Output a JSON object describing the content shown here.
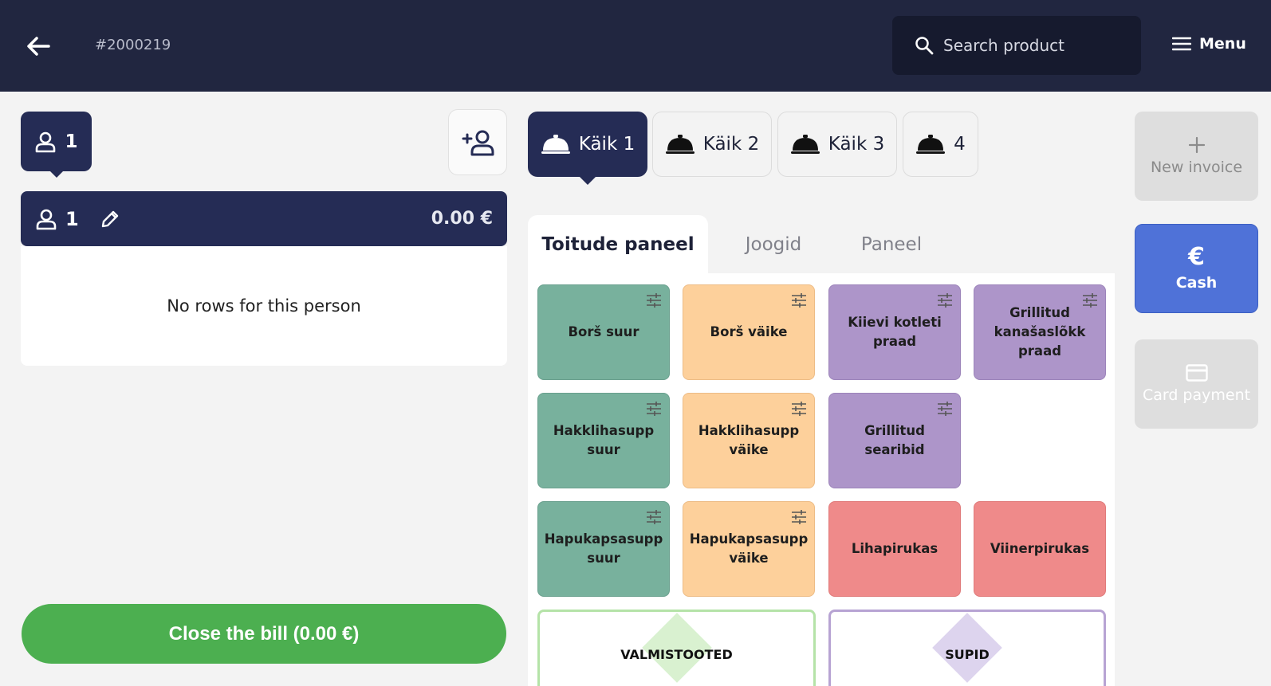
{
  "header": {
    "order_number": "#2000219",
    "search_placeholder": "Search product",
    "menu_label": "Menu"
  },
  "left": {
    "person_tab_count": "1",
    "person_number": "1",
    "person_total": "0.00 €",
    "empty_text": "No rows for this person",
    "close_bill_label": "Close the bill (0.00 €)"
  },
  "courses": [
    {
      "label": "Käik 1"
    },
    {
      "label": "Käik 2"
    },
    {
      "label": "Käik 3"
    },
    {
      "label": "4"
    }
  ],
  "panel_tabs": [
    {
      "label": "Toitude paneel"
    },
    {
      "label": "Joogid"
    },
    {
      "label": "Paneel"
    }
  ],
  "products": [
    {
      "label": "Borš suur",
      "color": "#78b19d"
    },
    {
      "label": "Borš väike",
      "color": "#fdd09b"
    },
    {
      "label": "Kiievi kotleti praad",
      "color": "#ad95c9"
    },
    {
      "label": "Grillitud kanašaslõkk praad",
      "color": "#ad95c9"
    },
    {
      "label": "Hakklihasupp suur",
      "color": "#78b19d"
    },
    {
      "label": "Hakklihasupp väike",
      "color": "#fdd09b"
    },
    {
      "label": "Grillitud searibid",
      "color": "#ad95c9"
    },
    {
      "label": "Hapukapsasupp suur",
      "color": "#78b19d"
    },
    {
      "label": "Hapukapsasupp väike",
      "color": "#fdd09b"
    },
    {
      "label": "Lihapirukas",
      "color": "#ef8a8a"
    },
    {
      "label": "Viinerpirukas",
      "color": "#ef8a8a"
    }
  ],
  "categories": [
    {
      "label": "VALMISTOOTED",
      "color": "#b5e3a8"
    },
    {
      "label": "SUPID",
      "color": "#cdbfe4"
    }
  ],
  "actions": {
    "new_invoice": "New invoice",
    "cash": "Cash",
    "card_payment": "Card payment"
  }
}
